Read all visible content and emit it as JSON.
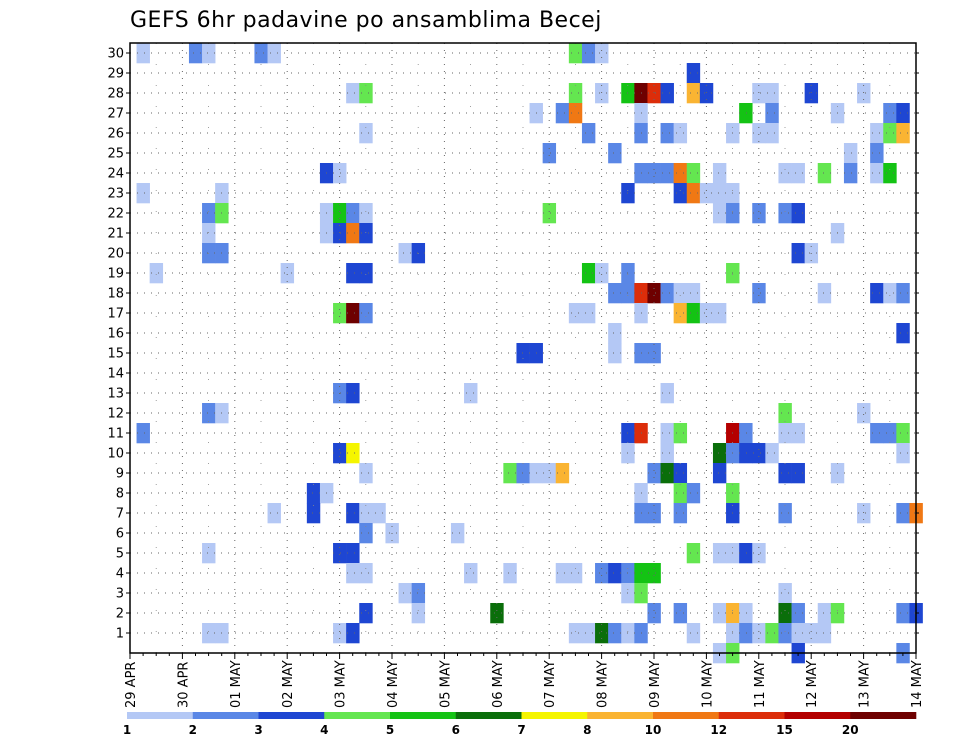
{
  "chart_data": {
    "type": "heatmap",
    "title": "GEFS 6hr padavine po ansamblima Becej",
    "y_members": [
      1,
      2,
      3,
      4,
      5,
      6,
      7,
      8,
      9,
      10,
      11,
      12,
      13,
      14,
      15,
      16,
      17,
      18,
      19,
      20,
      21,
      22,
      23,
      24,
      25,
      26,
      27,
      28,
      29,
      30
    ],
    "x_labels": [
      "29 APR",
      "30 APR",
      "01 MAY",
      "02 MAY",
      "03 MAY",
      "04 MAY",
      "05 MAY",
      "06 MAY",
      "07 MAY",
      "08 MAY",
      "09 MAY",
      "10 MAY",
      "11 MAY",
      "12 MAY",
      "13 MAY",
      "14 MAY"
    ],
    "steps_per_day": 4,
    "n_steps": 60,
    "grid": true,
    "colorbar": {
      "labels": [
        "1",
        "2",
        "3",
        "4",
        "5",
        "6",
        "7",
        "8",
        "10",
        "12",
        "15",
        "20"
      ],
      "colors": [
        "#b4c8f5",
        "#5a87e6",
        "#1e46d2",
        "#64e650",
        "#14c314",
        "#0a6e0a",
        "#f5f500",
        "#fab432",
        "#f07814",
        "#dc2d0a",
        "#b40000",
        "#6e0000"
      ]
    },
    "cells": [
      [
        1,
        30,
        1
      ],
      [
        5,
        30,
        2
      ],
      [
        6,
        30,
        1
      ],
      [
        10,
        30,
        2
      ],
      [
        11,
        30,
        1
      ],
      [
        34,
        30,
        4
      ],
      [
        35,
        30,
        2
      ],
      [
        36,
        30,
        1
      ],
      [
        43,
        29,
        3
      ],
      [
        17,
        28,
        1
      ],
      [
        18,
        28,
        4
      ],
      [
        34,
        28,
        4
      ],
      [
        36,
        28,
        1
      ],
      [
        38,
        28,
        5
      ],
      [
        39,
        28,
        12
      ],
      [
        40,
        28,
        10
      ],
      [
        41,
        28,
        3
      ],
      [
        43,
        28,
        8
      ],
      [
        44,
        28,
        3
      ],
      [
        48,
        28,
        1
      ],
      [
        49,
        28,
        1
      ],
      [
        52,
        28,
        3
      ],
      [
        56,
        28,
        1
      ],
      [
        31,
        27,
        1
      ],
      [
        33,
        27,
        2
      ],
      [
        34,
        27,
        9
      ],
      [
        39,
        27,
        1
      ],
      [
        47,
        27,
        5
      ],
      [
        49,
        27,
        2
      ],
      [
        54,
        27,
        1
      ],
      [
        58,
        27,
        2
      ],
      [
        59,
        27,
        3
      ],
      [
        18,
        26,
        1
      ],
      [
        35,
        26,
        2
      ],
      [
        39,
        26,
        2
      ],
      [
        41,
        26,
        2
      ],
      [
        42,
        26,
        1
      ],
      [
        46,
        26,
        1
      ],
      [
        48,
        26,
        1
      ],
      [
        49,
        26,
        1
      ],
      [
        57,
        26,
        1
      ],
      [
        58,
        26,
        4
      ],
      [
        59,
        26,
        8
      ],
      [
        32,
        25,
        2
      ],
      [
        37,
        25,
        2
      ],
      [
        57,
        25,
        2
      ],
      [
        55,
        25,
        1
      ],
      [
        15,
        24,
        3
      ],
      [
        16,
        24,
        1
      ],
      [
        39,
        24,
        2
      ],
      [
        40,
        24,
        2
      ],
      [
        41,
        24,
        2
      ],
      [
        42,
        24,
        9
      ],
      [
        43,
        24,
        4
      ],
      [
        45,
        24,
        1
      ],
      [
        50,
        24,
        1
      ],
      [
        51,
        24,
        1
      ],
      [
        53,
        24,
        4
      ],
      [
        55,
        24,
        2
      ],
      [
        57,
        24,
        1
      ],
      [
        58,
        24,
        5
      ],
      [
        1,
        23,
        1
      ],
      [
        7,
        23,
        1
      ],
      [
        38,
        23,
        3
      ],
      [
        42,
        23,
        3
      ],
      [
        43,
        23,
        9
      ],
      [
        44,
        23,
        1
      ],
      [
        45,
        23,
        1
      ],
      [
        46,
        23,
        1
      ],
      [
        6,
        22,
        2
      ],
      [
        7,
        22,
        4
      ],
      [
        15,
        22,
        1
      ],
      [
        16,
        22,
        5
      ],
      [
        17,
        22,
        2
      ],
      [
        18,
        22,
        1
      ],
      [
        32,
        22,
        4
      ],
      [
        45,
        22,
        1
      ],
      [
        46,
        22,
        2
      ],
      [
        48,
        22,
        2
      ],
      [
        50,
        22,
        2
      ],
      [
        51,
        22,
        3
      ],
      [
        6,
        21,
        1
      ],
      [
        15,
        21,
        1
      ],
      [
        16,
        21,
        3
      ],
      [
        17,
        21,
        9
      ],
      [
        18,
        21,
        3
      ],
      [
        54,
        21,
        1
      ],
      [
        6,
        20,
        2
      ],
      [
        7,
        20,
        2
      ],
      [
        21,
        20,
        1
      ],
      [
        22,
        20,
        3
      ],
      [
        51,
        20,
        3
      ],
      [
        52,
        20,
        1
      ],
      [
        2,
        19,
        1
      ],
      [
        12,
        19,
        1
      ],
      [
        17,
        19,
        3
      ],
      [
        18,
        19,
        3
      ],
      [
        35,
        19,
        5
      ],
      [
        36,
        19,
        1
      ],
      [
        38,
        19,
        2
      ],
      [
        46,
        19,
        4
      ],
      [
        37,
        18,
        2
      ],
      [
        38,
        18,
        2
      ],
      [
        39,
        18,
        10
      ],
      [
        40,
        18,
        12
      ],
      [
        41,
        18,
        2
      ],
      [
        42,
        18,
        1
      ],
      [
        43,
        18,
        1
      ],
      [
        48,
        18,
        2
      ],
      [
        53,
        18,
        1
      ],
      [
        57,
        18,
        3
      ],
      [
        58,
        18,
        1
      ],
      [
        59,
        18,
        2
      ],
      [
        16,
        17,
        4
      ],
      [
        17,
        17,
        12
      ],
      [
        18,
        17,
        2
      ],
      [
        34,
        17,
        1
      ],
      [
        35,
        17,
        1
      ],
      [
        39,
        17,
        1
      ],
      [
        42,
        17,
        8
      ],
      [
        43,
        17,
        5
      ],
      [
        44,
        17,
        1
      ],
      [
        45,
        17,
        1
      ],
      [
        37,
        16,
        1
      ],
      [
        59,
        16,
        3
      ],
      [
        30,
        15,
        3
      ],
      [
        31,
        15,
        3
      ],
      [
        37,
        15,
        1
      ],
      [
        39,
        15,
        2
      ],
      [
        40,
        15,
        2
      ],
      [
        16,
        13,
        2
      ],
      [
        17,
        13,
        3
      ],
      [
        26,
        13,
        1
      ],
      [
        41,
        13,
        1
      ],
      [
        6,
        12,
        2
      ],
      [
        7,
        12,
        1
      ],
      [
        50,
        12,
        4
      ],
      [
        56,
        12,
        1
      ],
      [
        1,
        11,
        2
      ],
      [
        38,
        11,
        3
      ],
      [
        39,
        11,
        10
      ],
      [
        41,
        11,
        1
      ],
      [
        42,
        11,
        4
      ],
      [
        46,
        11,
        11
      ],
      [
        47,
        11,
        2
      ],
      [
        50,
        11,
        1
      ],
      [
        51,
        11,
        1
      ],
      [
        57,
        11,
        2
      ],
      [
        58,
        11,
        2
      ],
      [
        59,
        11,
        4
      ],
      [
        16,
        10,
        3
      ],
      [
        17,
        10,
        7
      ],
      [
        38,
        10,
        1
      ],
      [
        41,
        10,
        1
      ],
      [
        45,
        10,
        6
      ],
      [
        46,
        10,
        2
      ],
      [
        47,
        10,
        3
      ],
      [
        48,
        10,
        3
      ],
      [
        49,
        10,
        1
      ],
      [
        59,
        10,
        1
      ],
      [
        18,
        9,
        1
      ],
      [
        29,
        9,
        4
      ],
      [
        30,
        9,
        2
      ],
      [
        31,
        9,
        1
      ],
      [
        32,
        9,
        1
      ],
      [
        33,
        9,
        8
      ],
      [
        40,
        9,
        2
      ],
      [
        41,
        9,
        6
      ],
      [
        42,
        9,
        3
      ],
      [
        45,
        9,
        3
      ],
      [
        50,
        9,
        3
      ],
      [
        51,
        9,
        3
      ],
      [
        54,
        9,
        1
      ],
      [
        14,
        8,
        3
      ],
      [
        15,
        8,
        1
      ],
      [
        39,
        8,
        1
      ],
      [
        42,
        8,
        4
      ],
      [
        43,
        8,
        2
      ],
      [
        46,
        8,
        4
      ],
      [
        11,
        7,
        1
      ],
      [
        14,
        7,
        3
      ],
      [
        17,
        7,
        3
      ],
      [
        18,
        7,
        1
      ],
      [
        19,
        7,
        1
      ],
      [
        39,
        7,
        2
      ],
      [
        40,
        7,
        2
      ],
      [
        42,
        7,
        2
      ],
      [
        46,
        7,
        3
      ],
      [
        50,
        7,
        2
      ],
      [
        56,
        7,
        1
      ],
      [
        59,
        7,
        2
      ],
      [
        60,
        7,
        9
      ],
      [
        18,
        6,
        2
      ],
      [
        20,
        6,
        1
      ],
      [
        25,
        6,
        1
      ],
      [
        6,
        5,
        1
      ],
      [
        16,
        5,
        3
      ],
      [
        17,
        5,
        3
      ],
      [
        43,
        5,
        4
      ],
      [
        45,
        5,
        1
      ],
      [
        46,
        5,
        1
      ],
      [
        47,
        5,
        3
      ],
      [
        48,
        5,
        1
      ],
      [
        17,
        4,
        1
      ],
      [
        18,
        4,
        1
      ],
      [
        26,
        4,
        1
      ],
      [
        29,
        4,
        1
      ],
      [
        33,
        4,
        1
      ],
      [
        34,
        4,
        1
      ],
      [
        36,
        4,
        2
      ],
      [
        37,
        4,
        3
      ],
      [
        38,
        4,
        2
      ],
      [
        39,
        4,
        5
      ],
      [
        40,
        4,
        5
      ],
      [
        21,
        3,
        1
      ],
      [
        22,
        3,
        2
      ],
      [
        38,
        3,
        1
      ],
      [
        39,
        3,
        4
      ],
      [
        50,
        3,
        1
      ],
      [
        18,
        2,
        3
      ],
      [
        22,
        2,
        1
      ],
      [
        28,
        2,
        6
      ],
      [
        40,
        2,
        2
      ],
      [
        42,
        2,
        2
      ],
      [
        45,
        2,
        1
      ],
      [
        46,
        2,
        8
      ],
      [
        47,
        2,
        1
      ],
      [
        50,
        2,
        6
      ],
      [
        51,
        2,
        2
      ],
      [
        53,
        2,
        1
      ],
      [
        54,
        2,
        4
      ],
      [
        59,
        2,
        2
      ],
      [
        60,
        2,
        3
      ],
      [
        6,
        1,
        1
      ],
      [
        7,
        1,
        1
      ],
      [
        16,
        1,
        1
      ],
      [
        17,
        1,
        3
      ],
      [
        34,
        1,
        1
      ],
      [
        35,
        1,
        1
      ],
      [
        36,
        1,
        6
      ],
      [
        37,
        1,
        2
      ],
      [
        38,
        1,
        1
      ],
      [
        39,
        1,
        2
      ],
      [
        43,
        1,
        1
      ],
      [
        46,
        1,
        1
      ],
      [
        47,
        1,
        2
      ],
      [
        48,
        1,
        1
      ],
      [
        49,
        1,
        4
      ],
      [
        50,
        1,
        2
      ],
      [
        51,
        1,
        1
      ],
      [
        52,
        1,
        1
      ],
      [
        53,
        1,
        1
      ],
      [
        45,
        0,
        1
      ],
      [
        46,
        0,
        4
      ],
      [
        51,
        0,
        3
      ],
      [
        59,
        0,
        2
      ]
    ]
  }
}
